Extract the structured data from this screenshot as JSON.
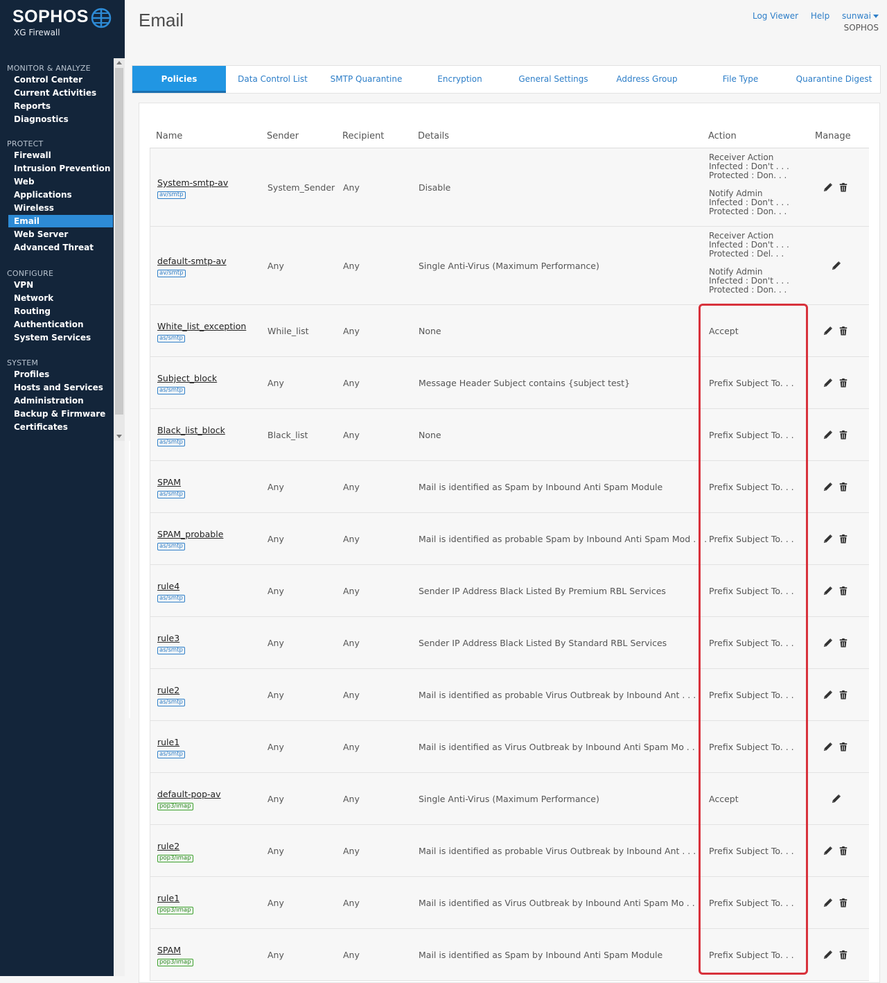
{
  "brand": {
    "name": "SOPHOS",
    "product": "XG Firewall"
  },
  "sidebar": {
    "sections": [
      {
        "label": "MONITOR & ANALYZE",
        "items": [
          "Control Center",
          "Current Activities",
          "Reports",
          "Diagnostics"
        ]
      },
      {
        "label": "PROTECT",
        "items": [
          "Firewall",
          "Intrusion Prevention",
          "Web",
          "Applications",
          "Wireless",
          "Email",
          "Web Server",
          "Advanced Threat"
        ]
      },
      {
        "label": "CONFIGURE",
        "items": [
          "VPN",
          "Network",
          "Routing",
          "Authentication",
          "System Services"
        ]
      },
      {
        "label": "SYSTEM",
        "items": [
          "Profiles",
          "Hosts and Services",
          "Administration",
          "Backup & Firmware",
          "Certificates"
        ]
      }
    ],
    "active_item": "Email"
  },
  "header": {
    "title": "Email",
    "log_viewer": "Log Viewer",
    "help": "Help",
    "user": "sunwai",
    "company": "SOPHOS"
  },
  "tabs": [
    "Policies",
    "Data Control List",
    "SMTP Quarantine",
    "Encryption",
    "General Settings",
    "Address Group",
    "File Type",
    "Quarantine Digest"
  ],
  "active_tab": "Policies",
  "table": {
    "headers": {
      "name": "Name",
      "sender": "Sender",
      "recipient": "Recipient",
      "details": "Details",
      "action": "Action",
      "manage": "Manage"
    },
    "rows": [
      {
        "name": "System-smtp-av",
        "tag": "av/smtp",
        "tag_type": "smtp",
        "sender": "System_Sender",
        "recipient": "Any",
        "details": "Disable",
        "action_lines": [
          "Receiver Action",
          "Infected : Don't . . .",
          "Protected : Don. . .",
          "",
          "Notify Admin",
          "Infected : Don't . . .",
          "Protected : Don. . ."
        ],
        "delete": true,
        "tall": true
      },
      {
        "name": "default-smtp-av",
        "tag": "av/smtp",
        "tag_type": "smtp",
        "sender": "Any",
        "recipient": "Any",
        "details": "Single Anti-Virus (Maximum Performance)",
        "action_lines": [
          "Receiver Action",
          "Infected : Don't . . .",
          "Protected : Del. . .",
          "",
          "Notify Admin",
          "Infected : Don't . . .",
          "Protected : Don. . ."
        ],
        "delete": false,
        "tall": true
      },
      {
        "name": "White_list_exception",
        "tag": "as/smtp",
        "tag_type": "smtp",
        "sender": "While_list",
        "recipient": "Any",
        "details": "None",
        "action": "Accept",
        "delete": true
      },
      {
        "name": "Subject_block",
        "tag": "as/smtp",
        "tag_type": "smtp",
        "sender": "Any",
        "recipient": "Any",
        "details": "Message Header Subject contains {subject test}",
        "action": "Prefix Subject To. . .",
        "delete": true
      },
      {
        "name": "Black_list_block",
        "tag": "as/smtp",
        "tag_type": "smtp",
        "sender": "Black_list",
        "recipient": "Any",
        "details": "None",
        "action": "Prefix Subject To. . .",
        "delete": true
      },
      {
        "name": "SPAM",
        "tag": "as/smtp",
        "tag_type": "smtp",
        "sender": "Any",
        "recipient": "Any",
        "details": "Mail is identified as Spam by Inbound Anti Spam Module",
        "action": "Prefix Subject To. . .",
        "delete": true
      },
      {
        "name": "SPAM_probable",
        "tag": "as/smtp",
        "tag_type": "smtp",
        "sender": "Any",
        "recipient": "Any",
        "details": "Mail is identified as probable Spam by Inbound Anti Spam Mod . . .",
        "action": "Prefix Subject To. . .",
        "delete": true
      },
      {
        "name": "rule4",
        "tag": "as/smtp",
        "tag_type": "smtp",
        "sender": "Any",
        "recipient": "Any",
        "details": "Sender IP Address Black Listed By Premium RBL Services",
        "action": "Prefix Subject To. . .",
        "delete": true
      },
      {
        "name": "rule3",
        "tag": "as/smtp",
        "tag_type": "smtp",
        "sender": "Any",
        "recipient": "Any",
        "details": "Sender IP Address Black Listed By Standard RBL Services",
        "action": "Prefix Subject To. . .",
        "delete": true
      },
      {
        "name": "rule2",
        "tag": "as/smtp",
        "tag_type": "smtp",
        "sender": "Any",
        "recipient": "Any",
        "details": "Mail is identified as probable Virus Outbreak by Inbound Ant . . .",
        "action": "Prefix Subject To. . .",
        "delete": true
      },
      {
        "name": "rule1",
        "tag": "as/smtp",
        "tag_type": "smtp",
        "sender": "Any",
        "recipient": "Any",
        "details": "Mail is identified as Virus Outbreak by Inbound Anti Spam Mo . . .",
        "action": "Prefix Subject To. . .",
        "delete": true
      },
      {
        "name": "default-pop-av",
        "tag": "pop3/imap",
        "tag_type": "pop",
        "sender": "Any",
        "recipient": "Any",
        "details": "Single Anti-Virus (Maximum Performance)",
        "action": "Accept",
        "delete": false
      },
      {
        "name": "rule2",
        "tag": "pop3/imap",
        "tag_type": "pop",
        "sender": "Any",
        "recipient": "Any",
        "details": "Mail is identified as probable Virus Outbreak by Inbound Ant . . .",
        "action": "Prefix Subject To. . .",
        "delete": true
      },
      {
        "name": "rule1",
        "tag": "pop3/imap",
        "tag_type": "pop",
        "sender": "Any",
        "recipient": "Any",
        "details": "Mail is identified as Virus Outbreak by Inbound Anti Spam Mo . . .",
        "action": "Prefix Subject To. . .",
        "delete": true
      },
      {
        "name": "SPAM",
        "tag": "pop3/imap",
        "tag_type": "pop",
        "sender": "Any",
        "recipient": "Any",
        "details": "Mail is identified as Spam by Inbound Anti Spam Module",
        "action": "Prefix Subject To. . .",
        "delete": true
      }
    ]
  },
  "colors": {
    "sidebar_bg": "#13253a",
    "accent": "#2196e3",
    "link": "#2d7ec8",
    "highlight_box": "#d8323c",
    "pop_tag": "#2a8a1e"
  }
}
